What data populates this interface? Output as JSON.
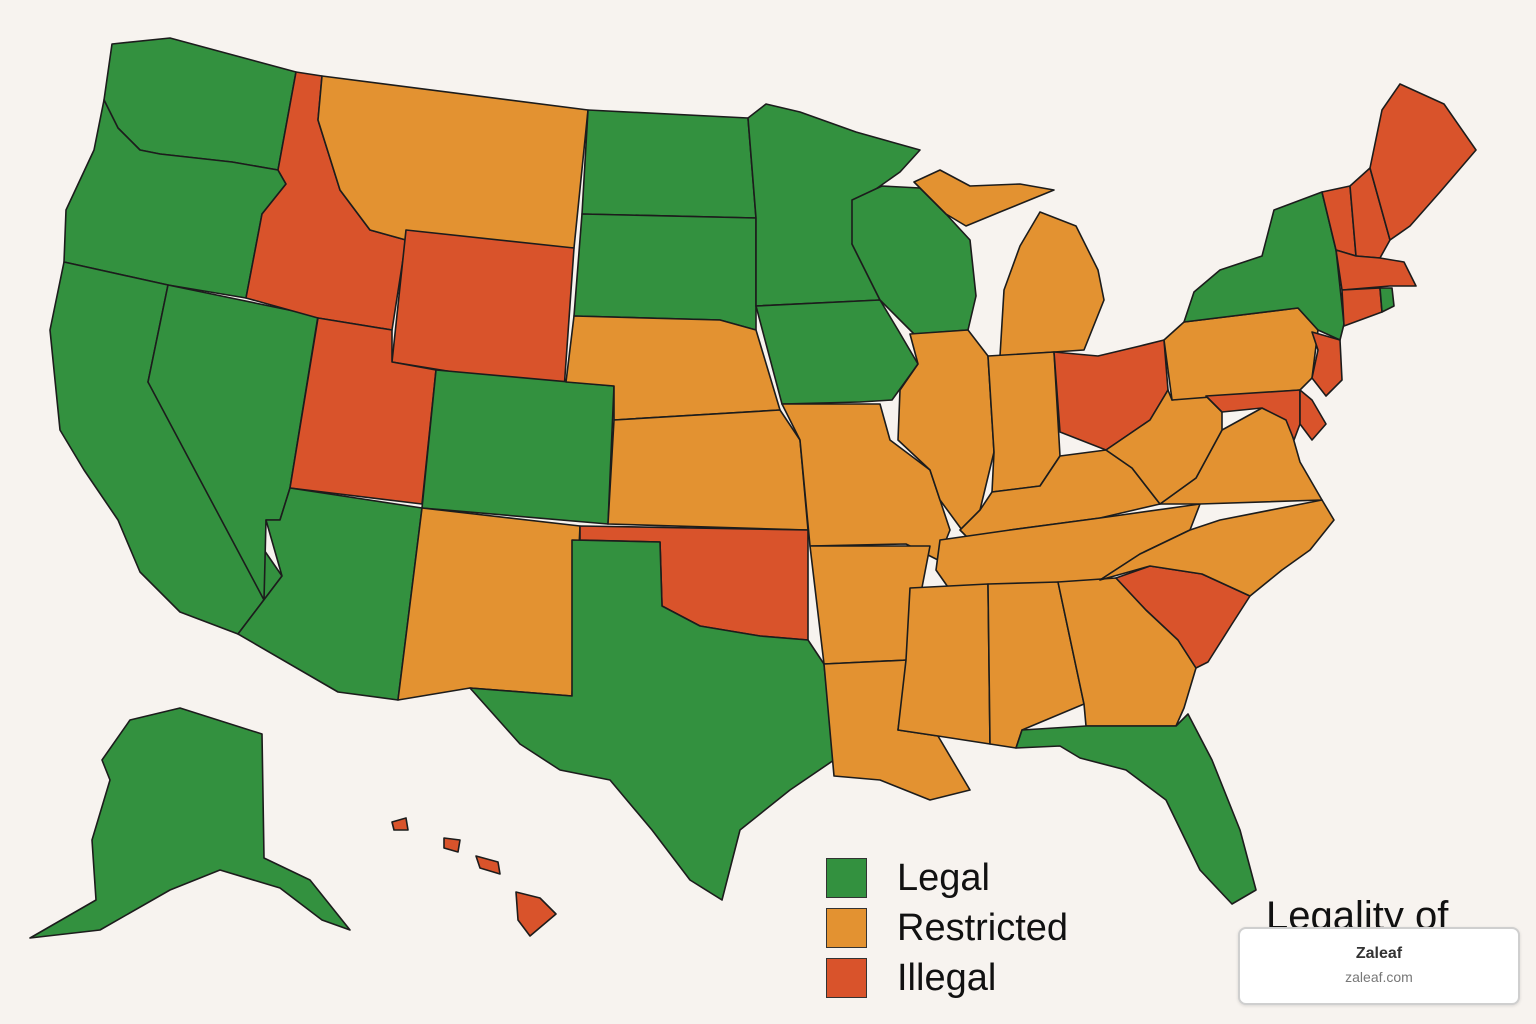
{
  "title": "Legality of",
  "colors": {
    "legal": "#33913f",
    "restricted": "#e39231",
    "illegal": "#d9532b",
    "background": "#f7f3ef",
    "border": "#1c1c1c"
  },
  "legend": [
    {
      "key": "legal",
      "label": "Legal"
    },
    {
      "key": "restricted",
      "label": "Restricted"
    },
    {
      "key": "illegal",
      "label": "Illegal"
    }
  ],
  "watermark": {
    "name": "Zaleaf",
    "url": "zaleaf.com"
  },
  "states": [
    {
      "id": "washington",
      "status": "legal"
    },
    {
      "id": "oregon",
      "status": "legal"
    },
    {
      "id": "california",
      "status": "legal"
    },
    {
      "id": "nevada",
      "status": "legal"
    },
    {
      "id": "idaho",
      "status": "illegal"
    },
    {
      "id": "montana",
      "status": "restricted"
    },
    {
      "id": "wyoming",
      "status": "illegal"
    },
    {
      "id": "utah",
      "status": "illegal"
    },
    {
      "id": "colorado",
      "status": "legal"
    },
    {
      "id": "arizona",
      "status": "legal"
    },
    {
      "id": "new-mexico",
      "status": "restricted"
    },
    {
      "id": "north-dakota",
      "status": "legal"
    },
    {
      "id": "south-dakota",
      "status": "legal"
    },
    {
      "id": "nebraska",
      "status": "restricted"
    },
    {
      "id": "kansas",
      "status": "restricted"
    },
    {
      "id": "oklahoma",
      "status": "illegal"
    },
    {
      "id": "texas",
      "status": "legal"
    },
    {
      "id": "minnesota",
      "status": "legal"
    },
    {
      "id": "iowa",
      "status": "legal"
    },
    {
      "id": "missouri",
      "status": "restricted"
    },
    {
      "id": "arkansas",
      "status": "restricted"
    },
    {
      "id": "louisiana",
      "status": "restricted"
    },
    {
      "id": "wisconsin",
      "status": "legal"
    },
    {
      "id": "michigan",
      "status": "restricted"
    },
    {
      "id": "illinois",
      "status": "restricted"
    },
    {
      "id": "indiana",
      "status": "restricted"
    },
    {
      "id": "ohio",
      "status": "illegal"
    },
    {
      "id": "kentucky",
      "status": "restricted"
    },
    {
      "id": "tennessee",
      "status": "restricted"
    },
    {
      "id": "mississippi",
      "status": "restricted"
    },
    {
      "id": "alabama",
      "status": "restricted"
    },
    {
      "id": "georgia",
      "status": "restricted"
    },
    {
      "id": "florida",
      "status": "legal"
    },
    {
      "id": "south-carolina",
      "status": "illegal"
    },
    {
      "id": "north-carolina",
      "status": "restricted"
    },
    {
      "id": "virginia",
      "status": "restricted"
    },
    {
      "id": "west-virginia",
      "status": "restricted"
    },
    {
      "id": "pennsylvania",
      "status": "restricted"
    },
    {
      "id": "new-york",
      "status": "legal"
    },
    {
      "id": "vermont",
      "status": "illegal"
    },
    {
      "id": "new-hampshire",
      "status": "illegal"
    },
    {
      "id": "maine",
      "status": "illegal"
    },
    {
      "id": "massachusetts",
      "status": "illegal"
    },
    {
      "id": "connecticut",
      "status": "illegal"
    },
    {
      "id": "rhode-island",
      "status": "legal"
    },
    {
      "id": "new-jersey",
      "status": "illegal"
    },
    {
      "id": "delaware",
      "status": "illegal"
    },
    {
      "id": "maryland",
      "status": "illegal"
    },
    {
      "id": "alaska",
      "status": "legal"
    },
    {
      "id": "hawaii",
      "status": "illegal"
    }
  ]
}
